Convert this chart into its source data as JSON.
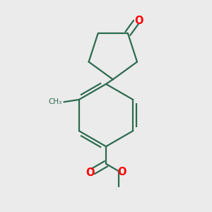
{
  "bg_color": "#ebebeb",
  "bond_color": "#2d6b50",
  "oxygen_color": "#ff0000",
  "line_width": 1.6,
  "figsize": [
    3.0,
    3.0
  ],
  "dpi": 100,
  "xlim": [
    0.15,
    0.85
  ],
  "ylim": [
    0.05,
    0.95
  ]
}
